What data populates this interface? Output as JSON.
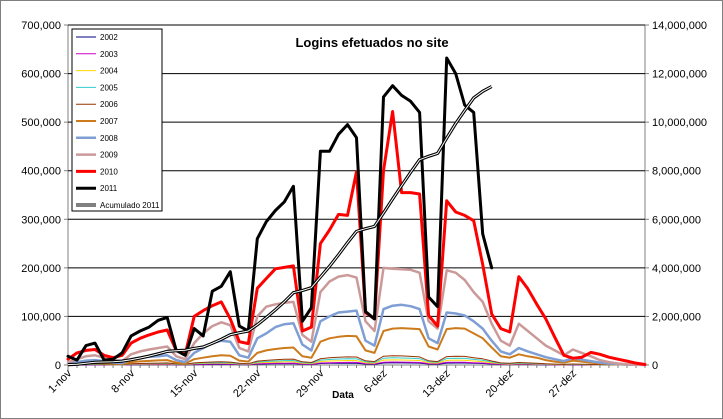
{
  "chart_data": {
    "type": "line",
    "title": "Logins efetuados no site",
    "xlabel": "Data",
    "ylabel": "",
    "ylim": [
      0,
      700000
    ],
    "y2lim": [
      0,
      14000000
    ],
    "yticks": [
      "0",
      "100,000",
      "200,000",
      "300,000",
      "400,000",
      "500,000",
      "600,000",
      "700,000"
    ],
    "y2ticks": [
      "0",
      "2,000,000",
      "4,000,000",
      "6,000,000",
      "8,000,000",
      "10,000,000",
      "12,000,000",
      "14,000,000"
    ],
    "x_start": "1-nov",
    "x_days": 64,
    "xticks": [
      {
        "label": "1-nov",
        "day": 0
      },
      {
        "label": "8-nov",
        "day": 7
      },
      {
        "label": "15-nov",
        "day": 14
      },
      {
        "label": "22-nov",
        "day": 21
      },
      {
        "label": "29-nov",
        "day": 28
      },
      {
        "label": "6-dez",
        "day": 35
      },
      {
        "label": "13-dez",
        "day": 42
      },
      {
        "label": "20-dez",
        "day": 49
      },
      {
        "label": "27-dez",
        "day": 56
      }
    ],
    "grid": "horizontal",
    "legend_position": "top-left",
    "series": [
      {
        "name": "2002",
        "color": "#000080",
        "width": 1,
        "axis": "left",
        "values": [
          200,
          300,
          500,
          600,
          500,
          300,
          200,
          600,
          700,
          800,
          900,
          1000,
          500,
          300,
          900,
          1100,
          1300,
          1400,
          1300,
          800,
          600,
          1800,
          2200,
          2500,
          2700,
          2800,
          1500,
          1200,
          3000,
          3400,
          3700,
          3900,
          3800,
          2000,
          1600,
          4200,
          4500,
          4300,
          4100,
          3900,
          2000,
          1700,
          4000,
          4200,
          4100,
          3500,
          3000,
          2000,
          1000,
          800,
          1200,
          1000,
          800,
          600,
          400,
          300,
          500,
          400,
          300,
          200,
          100,
          100,
          50,
          20,
          10
        ]
      },
      {
        "name": "2003",
        "color": "#cc00cc",
        "width": 1,
        "axis": "left",
        "values": [
          300,
          500,
          700,
          800,
          600,
          400,
          300,
          900,
          1000,
          1200,
          1300,
          1500,
          700,
          500,
          1400,
          1700,
          2000,
          2100,
          1900,
          1200,
          900,
          2600,
          3100,
          3500,
          3800,
          3900,
          2100,
          1700,
          4200,
          4800,
          5200,
          5400,
          5300,
          2800,
          2200,
          5800,
          6200,
          6000,
          5700,
          5400,
          2800,
          2300,
          5500,
          5800,
          5600,
          4800,
          4100,
          2700,
          1400,
          1100,
          1700,
          1400,
          1100,
          800,
          600,
          400,
          700,
          600,
          400,
          300,
          200,
          100,
          80,
          30,
          10
        ]
      },
      {
        "name": "2004",
        "color": "#ffd700",
        "width": 1,
        "axis": "left",
        "values": [
          500,
          800,
          1200,
          1400,
          1000,
          700,
          500,
          1500,
          1800,
          2100,
          2300,
          2500,
          1200,
          900,
          2500,
          3000,
          3400,
          3600,
          3300,
          2000,
          1500,
          4500,
          5300,
          6000,
          6500,
          6700,
          3600,
          2900,
          7200,
          8200,
          8800,
          9200,
          9000,
          4800,
          3800,
          10000,
          10600,
          10300,
          9800,
          9200,
          4800,
          3900,
          9500,
          10000,
          9700,
          8200,
          7000,
          4600,
          2400,
          1900,
          2900,
          2400,
          1900,
          1400,
          1000,
          700,
          1200,
          1000,
          700,
          500,
          300,
          200,
          120,
          50,
          20
        ]
      },
      {
        "name": "2005",
        "color": "#33cccc",
        "width": 1,
        "axis": "left",
        "values": [
          700,
          1100,
          1600,
          1900,
          1400,
          900,
          700,
          2000,
          2400,
          2800,
          3100,
          3400,
          1700,
          1200,
          3400,
          4100,
          4700,
          5000,
          4500,
          2700,
          2000,
          6200,
          7300,
          8300,
          9000,
          9300,
          5000,
          4000,
          10000,
          11400,
          12300,
          12800,
          12600,
          6700,
          5300,
          14000,
          14800,
          14400,
          13700,
          12900,
          6700,
          5500,
          13300,
          14000,
          13600,
          11500,
          9800,
          6400,
          3300,
          2600,
          4000,
          3300,
          2600,
          1900,
          1400,
          1000,
          1600,
          1300,
          1000,
          700,
          400,
          300,
          160,
          70,
          30
        ]
      },
      {
        "name": "2006",
        "color": "#993300",
        "width": 1,
        "axis": "left",
        "values": [
          900,
          1400,
          2000,
          2400,
          1800,
          1200,
          900,
          2600,
          3100,
          3600,
          4000,
          4400,
          2200,
          1600,
          4400,
          5300,
          6100,
          6500,
          5900,
          3500,
          2600,
          8000,
          9500,
          10800,
          11700,
          12100,
          6500,
          5200,
          13000,
          14800,
          16000,
          16600,
          16400,
          8700,
          6900,
          18200,
          19200,
          18700,
          17800,
          16700,
          8700,
          7100,
          17300,
          18200,
          17700,
          15000,
          12700,
          8300,
          4300,
          3400,
          5200,
          4300,
          3400,
          2500,
          1800,
          1300,
          2100,
          1700,
          1300,
          900,
          500,
          400,
          210,
          90,
          40
        ]
      },
      {
        "name": "2007",
        "color": "#cc7a1a",
        "width": 2,
        "axis": "left",
        "values": [
          1500,
          3000,
          4500,
          5200,
          4000,
          2500,
          2000,
          6000,
          7500,
          8500,
          9500,
          10000,
          5000,
          3000,
          12000,
          15000,
          18000,
          20000,
          19000,
          9000,
          7000,
          25000,
          30000,
          33000,
          35000,
          36000,
          18000,
          15000,
          48000,
          55000,
          58000,
          60000,
          59000,
          30000,
          25000,
          70000,
          75000,
          76000,
          75000,
          74000,
          38000,
          32000,
          74000,
          76000,
          75000,
          65000,
          55000,
          36000,
          18000,
          15000,
          22000,
          18000,
          15000,
          10000,
          7000,
          5000,
          9000,
          7000,
          5000,
          3000,
          2000,
          1000,
          500,
          200,
          100
        ]
      },
      {
        "name": "2008",
        "color": "#7f9fd4",
        "width": 2.5,
        "axis": "left",
        "values": [
          3000,
          6000,
          9000,
          10000,
          8000,
          5000,
          4000,
          12000,
          15000,
          17000,
          18000,
          20000,
          10000,
          6000,
          25000,
          35000,
          45000,
          50000,
          48000,
          20000,
          15000,
          55000,
          65000,
          78000,
          84000,
          86000,
          42000,
          30000,
          90000,
          100000,
          108000,
          110000,
          112000,
          50000,
          40000,
          115000,
          122000,
          124000,
          121000,
          115000,
          55000,
          45000,
          108000,
          106000,
          102000,
          90000,
          75000,
          50000,
          28000,
          22000,
          35000,
          28000,
          22000,
          16000,
          12000,
          8000,
          14000,
          11000,
          8000,
          5000,
          3000,
          2000,
          1000,
          400,
          150
        ]
      },
      {
        "name": "2009",
        "color": "#cc9999",
        "width": 2.5,
        "axis": "left",
        "values": [
          6000,
          12000,
          18000,
          20000,
          15000,
          10000,
          8000,
          22000,
          28000,
          32000,
          35000,
          38000,
          18000,
          12000,
          45000,
          65000,
          80000,
          88000,
          82000,
          35000,
          28000,
          100000,
          120000,
          125000,
          128000,
          130000,
          62000,
          48000,
          150000,
          172000,
          182000,
          185000,
          180000,
          90000,
          70000,
          200000,
          198000,
          197000,
          196000,
          190000,
          90000,
          75000,
          195000,
          190000,
          175000,
          150000,
          130000,
          85000,
          50000,
          40000,
          85000,
          70000,
          55000,
          40000,
          30000,
          20000,
          32000,
          25000,
          18000,
          10000,
          6000,
          3000,
          1500,
          600,
          200
        ]
      },
      {
        "name": "2010",
        "color": "#ff0000",
        "width": 3,
        "axis": "left",
        "values": [
          12000,
          25000,
          30000,
          32000,
          20000,
          15000,
          20000,
          45000,
          55000,
          62000,
          68000,
          72000,
          30000,
          22000,
          100000,
          112000,
          122000,
          130000,
          95000,
          48000,
          44000,
          158000,
          178000,
          198000,
          201000,
          204000,
          70000,
          78000,
          250000,
          278000,
          310000,
          308000,
          398000,
          108000,
          95000,
          400000,
          522000,
          355000,
          355000,
          352000,
          102000,
          80000,
          338000,
          315000,
          308000,
          297000,
          207000,
          105000,
          75000,
          68000,
          182000,
          157000,
          125000,
          95000,
          57000,
          20000,
          14000,
          16000,
          26000,
          22000,
          16000,
          12000,
          8000,
          4000,
          1000
        ]
      },
      {
        "name": "2011",
        "color": "#000000",
        "width": 3,
        "axis": "left",
        "values": [
          18000,
          10000,
          40000,
          45000,
          10000,
          12000,
          25000,
          60000,
          70000,
          78000,
          92000,
          98000,
          30000,
          20000,
          75000,
          60000,
          152000,
          162000,
          192000,
          80000,
          70000,
          260000,
          295000,
          318000,
          336000,
          368000,
          90000,
          118000,
          440000,
          440000,
          475000,
          495000,
          468000,
          110000,
          95000,
          552000,
          575000,
          555000,
          543000,
          520000,
          140000,
          120000,
          632000,
          600000,
          535000,
          520000,
          270000,
          200000
        ]
      },
      {
        "name": "Acumulado 2011",
        "color": "#000000",
        "width": 3.2,
        "axis": "right",
        "double": true,
        "values": [
          18000,
          28000,
          68000,
          113000,
          123000,
          135000,
          160000,
          220000,
          290000,
          368000,
          460000,
          558000,
          588000,
          608000,
          683000,
          743000,
          895000,
          1057000,
          1249000,
          1329000,
          1399000,
          1659000,
          1954000,
          2272000,
          2608000,
          2976000,
          3066000,
          3184000,
          3624000,
          4064000,
          4539000,
          5034000,
          5502000,
          5612000,
          5707000,
          6259000,
          6834000,
          7389000,
          7932000,
          8452000,
          8592000,
          8712000,
          9344000,
          9944000,
          10479000,
          10999000,
          11269000,
          11469000
        ]
      }
    ]
  }
}
